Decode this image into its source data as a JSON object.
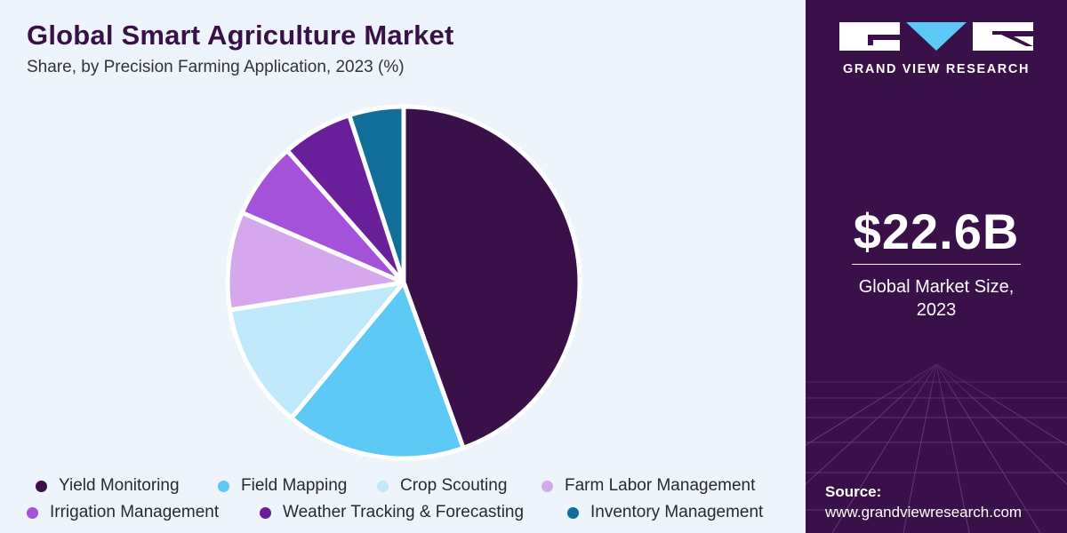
{
  "title": "Global Smart Agriculture Market",
  "subtitle": "Share, by Precision Farming Application, 2023 (%)",
  "chart_data": {
    "type": "pie",
    "title": "Global Smart Agriculture Market",
    "subtitle": "Share, by Precision Farming Application, 2023 (%)",
    "legend_position": "bottom",
    "categories": [
      "Yield Monitoring",
      "Field Mapping",
      "Crop Scouting",
      "Farm Labor Management",
      "Irrigation Management",
      "Weather Tracking & Forecasting",
      "Inventory Management"
    ],
    "values": [
      44.5,
      16.5,
      11.5,
      9.0,
      7.0,
      6.5,
      5.0
    ],
    "colors": [
      "#3a1048",
      "#5bc8f5",
      "#bfe8fb",
      "#d5a8ee",
      "#a552db",
      "#6a1f9a",
      "#106e99"
    ]
  },
  "sidebar": {
    "brand": "GRAND VIEW RESEARCH",
    "market_value": "$22.6B",
    "market_label_line1": "Global Market Size,",
    "market_label_line2": "2023",
    "source_label": "Source:",
    "source_url": "www.grandviewresearch.com"
  }
}
